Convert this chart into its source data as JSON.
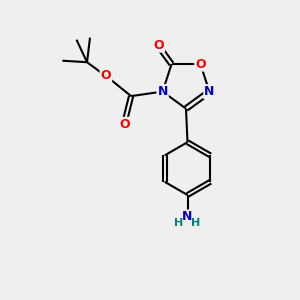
{
  "background_color": "#efefef",
  "bond_color": "#000000",
  "bond_width": 1.5,
  "atom_colors": {
    "O": "#ff0000",
    "N": "#0000cc",
    "NH2_N": "#0000cc",
    "NH2_H": "#008080",
    "C": "#000000"
  },
  "font_size_atoms": 9,
  "fig_width": 3.0,
  "fig_height": 3.0,
  "dpi": 100,
  "xlim": [
    0,
    10
  ],
  "ylim": [
    0,
    10
  ]
}
